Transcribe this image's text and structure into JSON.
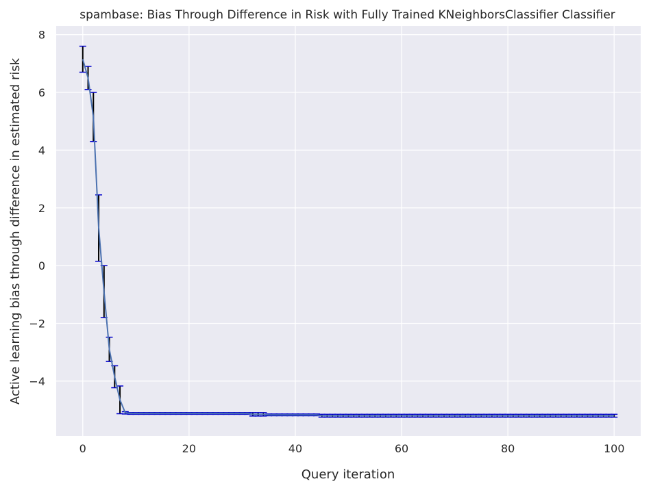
{
  "chart_data": {
    "type": "line",
    "title": "spambase: Bias Through Difference in Risk with Fully Trained KNeighborsClassifier Classifier",
    "xlabel": "Query iteration",
    "ylabel": "Active learning bias through difference in estimated risk",
    "xlim": [
      -5,
      105
    ],
    "ylim": [
      -5.9,
      8.3
    ],
    "xticks": [
      0,
      20,
      40,
      60,
      80,
      100
    ],
    "yticks": [
      8,
      6,
      4,
      2,
      0,
      -2,
      -4
    ],
    "grid": true,
    "legend": "none",
    "colors": {
      "background": "#eaeaf2",
      "grid": "#ffffff",
      "line": "#4c72b0",
      "errorbar": "#000000",
      "cap": "#0000cc"
    },
    "series": [
      {
        "x": [
          0,
          1,
          2,
          3,
          4,
          5,
          6,
          7,
          8,
          9,
          10,
          11,
          12,
          13,
          14,
          15,
          16,
          17,
          18,
          19,
          20,
          21,
          22,
          23,
          24,
          25,
          26,
          27,
          28,
          29,
          30,
          31,
          32,
          33,
          34,
          35,
          36,
          37,
          38,
          39,
          40,
          41,
          42,
          43,
          44,
          45,
          46,
          47,
          48,
          49,
          50,
          51,
          52,
          53,
          54,
          55,
          56,
          57,
          58,
          59,
          60,
          61,
          62,
          63,
          64,
          65,
          66,
          67,
          68,
          69,
          70,
          71,
          72,
          73,
          74,
          75,
          76,
          77,
          78,
          79,
          80,
          81,
          82,
          83,
          84,
          85,
          86,
          87,
          88,
          89,
          90,
          91,
          92,
          93,
          94,
          95,
          96,
          97,
          98,
          99,
          100
        ],
        "y": [
          7.15,
          6.5,
          5.15,
          1.3,
          -0.9,
          -2.9,
          -3.85,
          -4.65,
          -5.1,
          -5.12,
          -5.12,
          -5.12,
          -5.12,
          -5.12,
          -5.12,
          -5.12,
          -5.12,
          -5.12,
          -5.12,
          -5.12,
          -5.12,
          -5.12,
          -5.12,
          -5.12,
          -5.12,
          -5.12,
          -5.12,
          -5.12,
          -5.12,
          -5.12,
          -5.12,
          -5.12,
          -5.15,
          -5.15,
          -5.15,
          -5.17,
          -5.17,
          -5.17,
          -5.17,
          -5.17,
          -5.17,
          -5.17,
          -5.17,
          -5.17,
          -5.17,
          -5.2,
          -5.2,
          -5.2,
          -5.2,
          -5.2,
          -5.2,
          -5.2,
          -5.2,
          -5.2,
          -5.2,
          -5.2,
          -5.2,
          -5.2,
          -5.2,
          -5.2,
          -5.2,
          -5.2,
          -5.2,
          -5.2,
          -5.2,
          -5.2,
          -5.2,
          -5.2,
          -5.2,
          -5.2,
          -5.2,
          -5.2,
          -5.2,
          -5.2,
          -5.2,
          -5.2,
          -5.2,
          -5.2,
          -5.2,
          -5.2,
          -5.2,
          -5.2,
          -5.2,
          -5.2,
          -5.2,
          -5.2,
          -5.2,
          -5.2,
          -5.2,
          -5.2,
          -5.2,
          -5.2,
          -5.2,
          -5.2,
          -5.2,
          -5.2,
          -5.2,
          -5.2,
          -5.2,
          -5.2,
          -5.2
        ],
        "err": [
          0.45,
          0.4,
          0.85,
          1.15,
          0.9,
          0.42,
          0.38,
          0.48,
          0.04,
          0.03,
          0.03,
          0.03,
          0.03,
          0.03,
          0.03,
          0.03,
          0.03,
          0.03,
          0.03,
          0.03,
          0.03,
          0.03,
          0.03,
          0.03,
          0.03,
          0.03,
          0.03,
          0.03,
          0.03,
          0.03,
          0.03,
          0.03,
          0.06,
          0.06,
          0.06,
          0.03,
          0.03,
          0.03,
          0.03,
          0.03,
          0.03,
          0.03,
          0.03,
          0.03,
          0.03,
          0.05,
          0.05,
          0.05,
          0.05,
          0.05,
          0.05,
          0.05,
          0.05,
          0.05,
          0.05,
          0.05,
          0.05,
          0.05,
          0.05,
          0.05,
          0.05,
          0.05,
          0.05,
          0.05,
          0.05,
          0.05,
          0.05,
          0.05,
          0.05,
          0.05,
          0.05,
          0.05,
          0.05,
          0.05,
          0.05,
          0.05,
          0.05,
          0.05,
          0.05,
          0.05,
          0.05,
          0.05,
          0.05,
          0.05,
          0.05,
          0.05,
          0.05,
          0.05,
          0.05,
          0.05,
          0.05,
          0.05,
          0.05,
          0.05,
          0.05,
          0.05,
          0.05,
          0.05,
          0.05,
          0.05,
          0.05
        ]
      }
    ]
  }
}
